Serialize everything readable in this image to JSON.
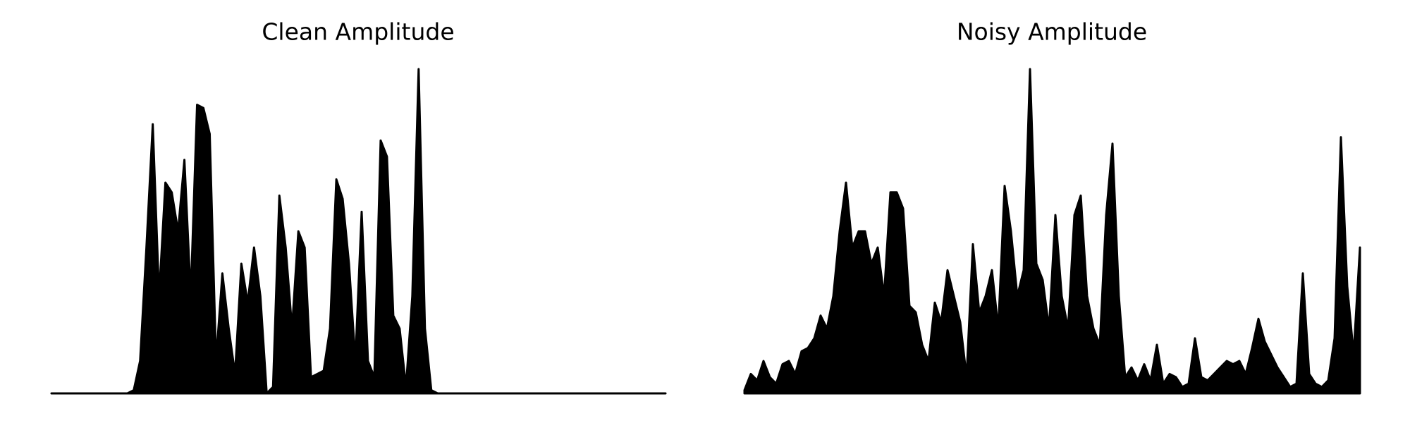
{
  "chart_data": [
    {
      "type": "area",
      "title": "Clean Amplitude",
      "color": "#000000",
      "ylim": [
        0,
        1
      ],
      "values": [
        0,
        0,
        0,
        0,
        0,
        0,
        0,
        0,
        0,
        0,
        0,
        0,
        0,
        0.01,
        0.1,
        0.45,
        0.83,
        0.3,
        0.65,
        0.62,
        0.5,
        0.72,
        0.3,
        0.89,
        0.88,
        0.8,
        0.1,
        0.37,
        0.2,
        0.06,
        0.4,
        0.28,
        0.45,
        0.3,
        0,
        0.02,
        0.61,
        0.45,
        0.2,
        0.5,
        0.45,
        0.05,
        0.06,
        0.07,
        0.2,
        0.66,
        0.6,
        0.4,
        0.1,
        0.56,
        0.1,
        0.05,
        0.78,
        0.73,
        0.24,
        0.2,
        0.02,
        0.3,
        1.0,
        0.2,
        0.01,
        0,
        0,
        0,
        0,
        0,
        0,
        0,
        0,
        0,
        0,
        0,
        0,
        0,
        0,
        0,
        0,
        0,
        0,
        0,
        0,
        0,
        0,
        0,
        0,
        0,
        0,
        0,
        0,
        0,
        0,
        0,
        0,
        0,
        0,
        0,
        0,
        0
      ]
    },
    {
      "type": "area",
      "title": "Noisy Amplitude",
      "color": "#000000",
      "ylim": [
        0,
        1
      ],
      "values": [
        0.01,
        0.06,
        0.04,
        0.1,
        0.05,
        0.03,
        0.09,
        0.1,
        0.06,
        0.13,
        0.14,
        0.17,
        0.24,
        0.2,
        0.3,
        0.5,
        0.65,
        0.45,
        0.5,
        0.5,
        0.4,
        0.45,
        0.3,
        0.62,
        0.62,
        0.57,
        0.27,
        0.25,
        0.15,
        0.1,
        0.28,
        0.22,
        0.38,
        0.3,
        0.22,
        0.05,
        0.46,
        0.25,
        0.3,
        0.38,
        0.2,
        0.64,
        0.5,
        0.3,
        0.38,
        1.0,
        0.4,
        0.35,
        0.2,
        0.55,
        0.3,
        0.2,
        0.55,
        0.61,
        0.3,
        0.2,
        0.15,
        0.55,
        0.77,
        0.3,
        0.05,
        0.08,
        0.04,
        0.09,
        0.04,
        0.15,
        0.03,
        0.06,
        0.05,
        0.02,
        0.03,
        0.17,
        0.05,
        0.04,
        0.06,
        0.08,
        0.1,
        0.09,
        0.1,
        0.06,
        0.14,
        0.23,
        0.16,
        0.12,
        0.08,
        0.05,
        0.02,
        0.03,
        0.37,
        0.06,
        0.03,
        0.02,
        0.04,
        0.17,
        0.79,
        0.33,
        0.12,
        0.45
      ]
    }
  ]
}
